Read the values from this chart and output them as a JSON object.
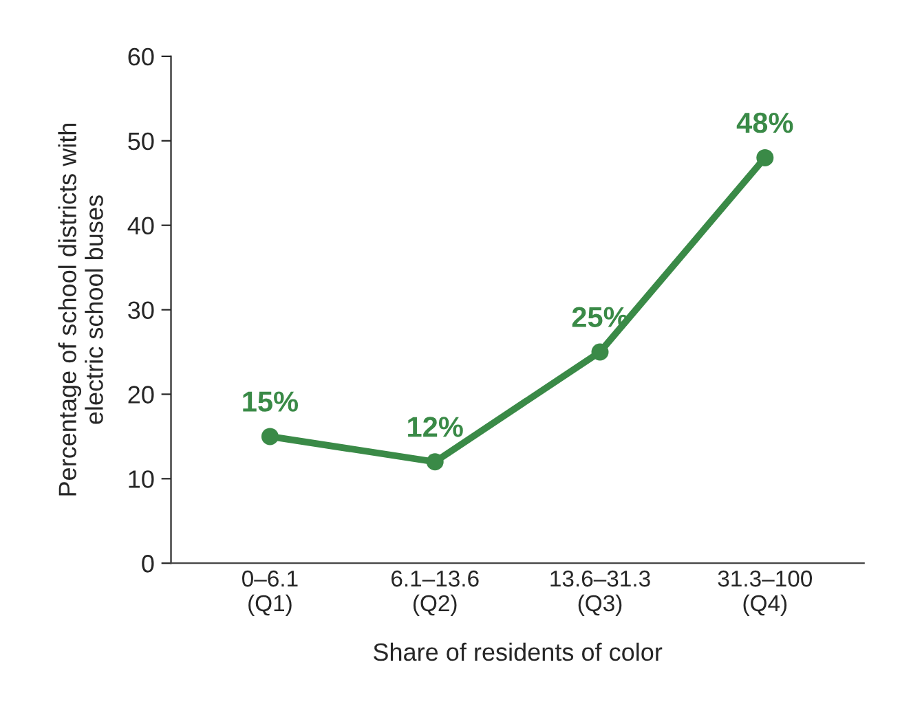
{
  "chart_data": {
    "type": "line",
    "xlabel": "Share of residents of color",
    "ylabel": "Percentage of school districts with\nelectric school buses",
    "categories": [
      "0–6.1\n(Q1)",
      "6.1–13.6\n(Q2)",
      "13.6–31.3\n(Q3)",
      "31.3–100\n(Q4)"
    ],
    "series": [
      {
        "color": "#3a8a47",
        "values": [
          15,
          12,
          25,
          48
        ],
        "value_labels": [
          "15%",
          "12%",
          "25%",
          "48%"
        ]
      }
    ],
    "ylim": [
      0,
      60
    ],
    "yticks": [
      0,
      10,
      20,
      30,
      40,
      50,
      60
    ],
    "grid": false,
    "legend": false,
    "marker": "circle",
    "line_style": "solid"
  }
}
